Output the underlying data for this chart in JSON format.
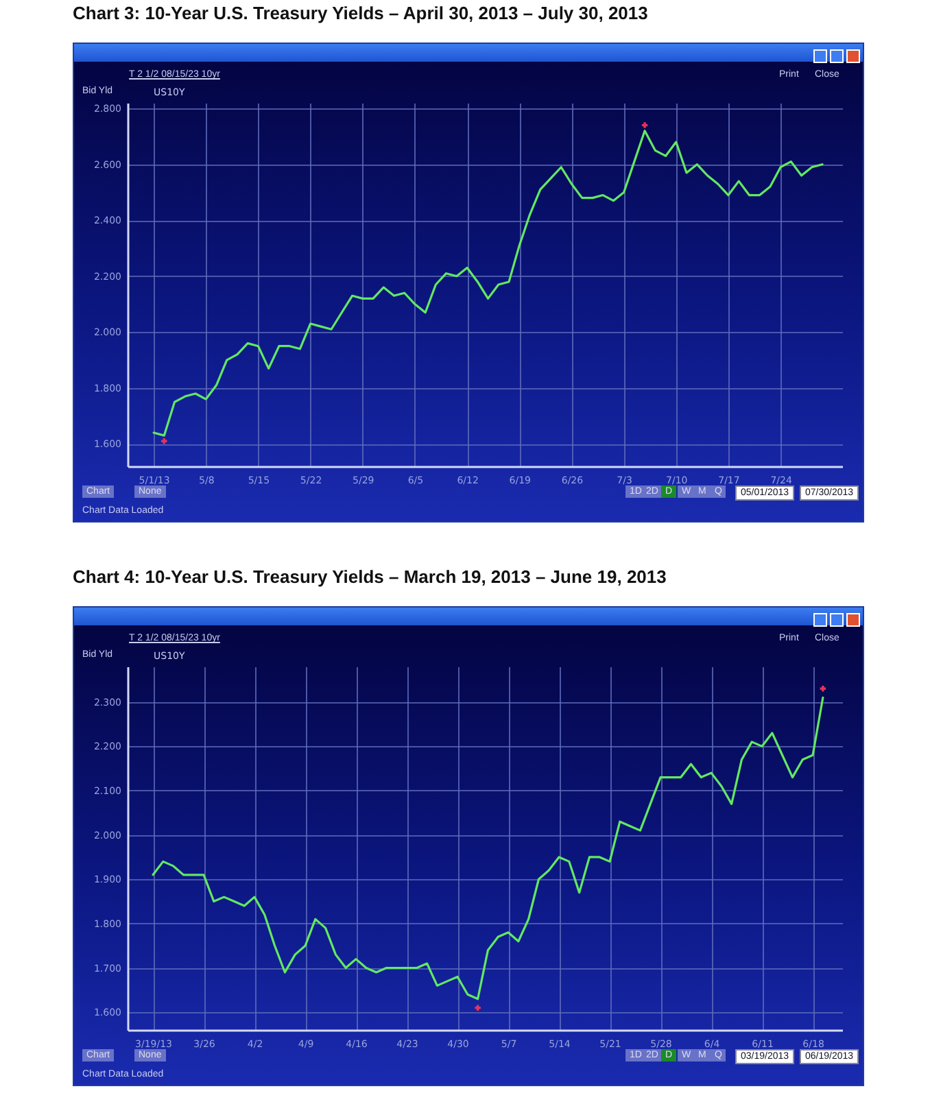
{
  "chart_data": [
    {
      "type": "line",
      "title": "Chart 3: 10-Year U.S. Treasury Yields – April 30, 2013 – July 30, 2013",
      "categories": [
        "5/1/13",
        null,
        null,
        null,
        null,
        "5/8",
        null,
        null,
        null,
        null,
        "5/15",
        null,
        null,
        null,
        null,
        "5/22",
        null,
        null,
        null,
        null,
        "5/29",
        null,
        null,
        null,
        null,
        "6/5",
        null,
        null,
        null,
        null,
        "6/12",
        null,
        null,
        null,
        null,
        "6/19",
        null,
        null,
        null,
        null,
        "6/26",
        null,
        null,
        null,
        null,
        "7/3",
        null,
        null,
        null,
        null,
        "7/10",
        null,
        null,
        null,
        null,
        "7/17",
        null,
        null,
        null,
        null,
        "7/24",
        null,
        null,
        null,
        null
      ],
      "series": [
        {
          "name": "US10Y",
          "color": "#62e862",
          "values": [
            1.64,
            1.63,
            1.75,
            1.77,
            1.78,
            1.76,
            1.81,
            1.9,
            1.92,
            1.96,
            1.95,
            1.87,
            1.95,
            1.95,
            1.94,
            2.03,
            2.02,
            2.01,
            2.07,
            2.13,
            2.12,
            2.12,
            2.16,
            2.13,
            2.14,
            2.1,
            2.07,
            2.17,
            2.21,
            2.2,
            2.23,
            2.18,
            2.12,
            2.17,
            2.18,
            2.31,
            2.42,
            2.51,
            2.55,
            2.59,
            2.53,
            2.48,
            2.48,
            2.49,
            2.47,
            2.5,
            2.61,
            2.72,
            2.65,
            2.63,
            2.68,
            2.57,
            2.6,
            2.56,
            2.53,
            2.49,
            2.54,
            2.49,
            2.49,
            2.52,
            2.59,
            2.61,
            2.56,
            2.59,
            2.6
          ]
        },
        {
          "type": "scatter",
          "marker": "cross",
          "color": "#e8305a",
          "values": [
            null,
            1.61,
            null,
            null,
            null,
            null,
            null,
            null,
            null,
            null,
            null,
            null,
            null,
            null,
            null,
            null,
            null,
            null,
            null,
            null,
            null,
            null,
            null,
            null,
            null,
            null,
            null,
            null,
            null,
            null,
            null,
            null,
            null,
            null,
            null,
            null,
            null,
            null,
            null,
            null,
            null,
            null,
            null,
            null,
            null,
            null,
            null,
            2.74,
            null,
            null,
            null,
            null,
            null,
            null,
            null,
            null,
            null,
            null,
            null,
            null,
            null,
            null,
            null,
            null,
            null
          ]
        }
      ],
      "ylim": [
        1.52,
        2.82
      ],
      "yticks": [
        {
          "value": 1.6,
          "label": "1.600"
        },
        {
          "value": 1.8,
          "label": "1.800"
        },
        {
          "value": 2.0,
          "label": "2.000"
        },
        {
          "value": 2.2,
          "label": "2.200"
        },
        {
          "value": 2.4,
          "label": "2.400"
        },
        {
          "value": 2.6,
          "label": "2.600"
        },
        {
          "value": 2.8,
          "label": "2.800"
        }
      ],
      "grid": true,
      "legend": "top left",
      "line_style": "solid",
      "annotations": [
        "T 2 1/2 08/15/23 10yr",
        "Bid Yld",
        "Print",
        "Close",
        "Chart",
        "None",
        "1D",
        "2D",
        "D",
        "W",
        "M",
        "Q",
        "05/01/2013",
        "07/30/2013",
        "Chart Data Loaded"
      ]
    },
    {
      "type": "line",
      "title": "Chart 4: 10-Year U.S. Treasury Yields – March 19, 2013 – June 19, 2013",
      "categories": [
        "3/19/13",
        null,
        null,
        null,
        null,
        "3/26",
        null,
        null,
        null,
        null,
        "4/2",
        null,
        null,
        null,
        null,
        "4/9",
        null,
        null,
        null,
        null,
        "4/16",
        null,
        null,
        null,
        null,
        "4/23",
        null,
        null,
        null,
        null,
        "4/30",
        null,
        null,
        null,
        null,
        "5/7",
        null,
        null,
        null,
        null,
        "5/14",
        null,
        null,
        null,
        null,
        "5/21",
        null,
        null,
        null,
        null,
        "5/28",
        null,
        null,
        null,
        null,
        "6/4",
        null,
        null,
        null,
        null,
        "6/11",
        null,
        null,
        null,
        null,
        "6/18",
        null
      ],
      "series": [
        {
          "name": "US10Y",
          "color": "#62e862",
          "values": [
            1.91,
            1.94,
            1.93,
            1.91,
            1.91,
            1.91,
            1.85,
            1.86,
            1.85,
            1.84,
            1.86,
            1.82,
            1.75,
            1.69,
            1.73,
            1.75,
            1.81,
            1.79,
            1.73,
            1.7,
            1.72,
            1.7,
            1.69,
            1.7,
            1.7,
            1.7,
            1.7,
            1.71,
            1.66,
            1.67,
            1.68,
            1.64,
            1.63,
            1.74,
            1.77,
            1.78,
            1.76,
            1.81,
            1.9,
            1.92,
            1.95,
            1.94,
            1.87,
            1.95,
            1.95,
            1.94,
            2.03,
            2.02,
            2.01,
            2.07,
            2.13,
            2.13,
            2.13,
            2.16,
            2.13,
            2.14,
            2.11,
            2.07,
            2.17,
            2.21,
            2.2,
            2.23,
            2.18,
            2.13,
            2.17,
            2.18,
            2.31
          ]
        },
        {
          "type": "scatter",
          "marker": "cross",
          "color": "#e8305a",
          "values": [
            null,
            null,
            null,
            null,
            null,
            null,
            null,
            null,
            null,
            null,
            null,
            null,
            null,
            null,
            null,
            null,
            null,
            null,
            null,
            null,
            null,
            null,
            null,
            null,
            null,
            null,
            null,
            null,
            null,
            null,
            null,
            null,
            1.61,
            null,
            null,
            null,
            null,
            null,
            null,
            null,
            null,
            null,
            null,
            null,
            null,
            null,
            null,
            null,
            null,
            null,
            null,
            null,
            null,
            null,
            null,
            null,
            null,
            null,
            null,
            null,
            null,
            null,
            null,
            null,
            null,
            null,
            2.33
          ]
        }
      ],
      "ylim": [
        1.56,
        2.38
      ],
      "yticks": [
        {
          "value": 1.6,
          "label": "1.600"
        },
        {
          "value": 1.7,
          "label": "1.700"
        },
        {
          "value": 1.8,
          "label": "1.800"
        },
        {
          "value": 1.9,
          "label": "1.900"
        },
        {
          "value": 2.0,
          "label": "2.000"
        },
        {
          "value": 2.1,
          "label": "2.100"
        },
        {
          "value": 2.2,
          "label": "2.200"
        },
        {
          "value": 2.3,
          "label": "2.300"
        }
      ],
      "grid": true,
      "legend": "top left",
      "line_style": "solid",
      "annotations": [
        "T 2 1/2 08/15/23 10yr",
        "Bid Yld",
        "Print",
        "Close",
        "Chart",
        "None",
        "1D",
        "2D",
        "D",
        "W",
        "M",
        "Q",
        "03/19/2013",
        "06/19/2013",
        "Chart Data Loaded"
      ]
    }
  ]
}
